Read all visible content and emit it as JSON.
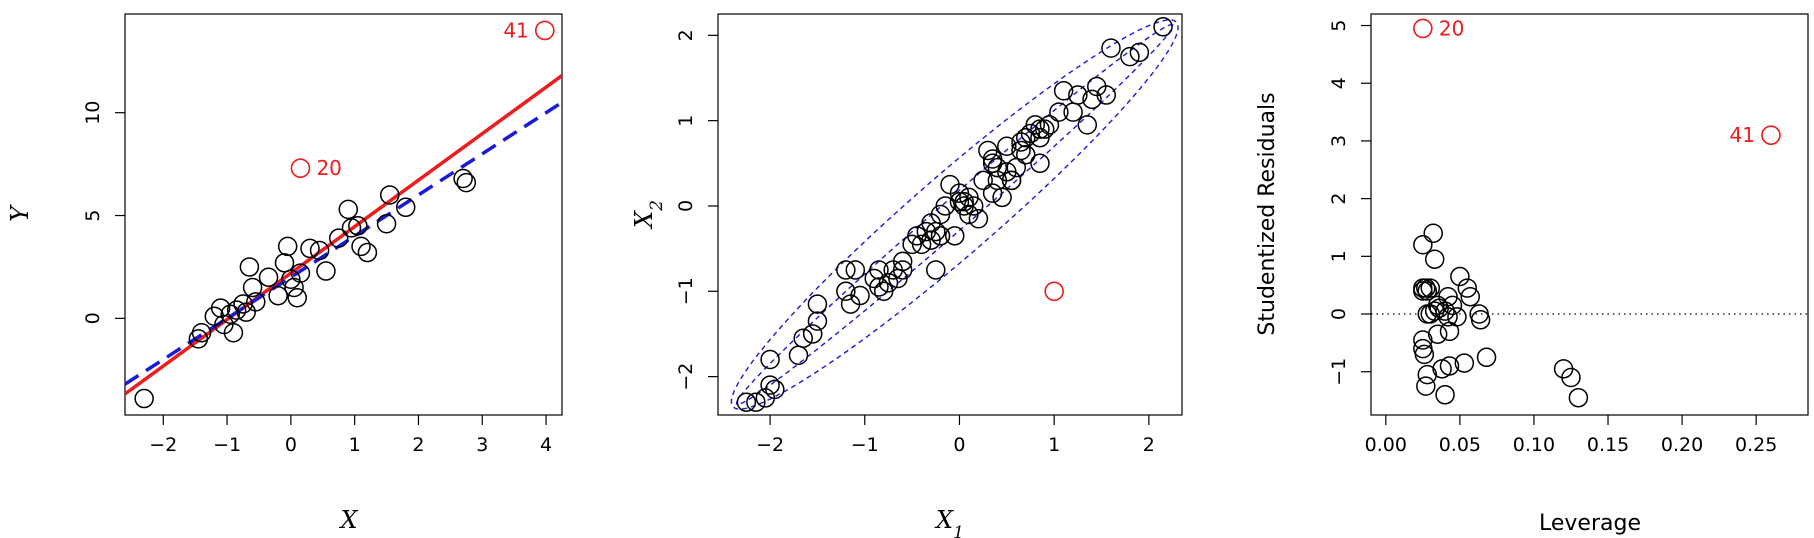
{
  "chart_data": [
    {
      "type": "scatter",
      "title": "",
      "xlabel": "X",
      "ylabel": "Y",
      "xlim": [
        -2.6,
        4.25
      ],
      "ylim": [
        -4.7,
        14.8
      ],
      "xticks": [
        "−2",
        "−1",
        "0",
        "1",
        "2",
        "3",
        "4"
      ],
      "xtick_values": [
        -2,
        -1,
        0,
        1,
        2,
        3,
        4
      ],
      "yticks": [
        "0",
        "5",
        "10"
      ],
      "ytick_values": [
        0,
        5,
        10
      ],
      "points": [
        [
          -2.3,
          -3.9
        ],
        [
          -1.45,
          -1.0
        ],
        [
          -1.4,
          -0.7
        ],
        [
          -1.2,
          0.1
        ],
        [
          -1.1,
          0.5
        ],
        [
          -1.05,
          -0.3
        ],
        [
          -0.95,
          0.2
        ],
        [
          -0.9,
          -0.7
        ],
        [
          -0.85,
          0.4
        ],
        [
          -0.75,
          0.7
        ],
        [
          -0.7,
          0.3
        ],
        [
          -0.65,
          2.5
        ],
        [
          -0.6,
          1.5
        ],
        [
          -0.55,
          0.8
        ],
        [
          -0.35,
          2.0
        ],
        [
          -0.2,
          1.1
        ],
        [
          -0.1,
          2.7
        ],
        [
          -0.05,
          3.5
        ],
        [
          0.0,
          1.9
        ],
        [
          0.05,
          1.5
        ],
        [
          0.1,
          1.0
        ],
        [
          0.15,
          2.2
        ],
        [
          0.3,
          3.4
        ],
        [
          0.45,
          3.3
        ],
        [
          0.55,
          2.3
        ],
        [
          0.75,
          3.9
        ],
        [
          0.9,
          5.3
        ],
        [
          0.95,
          4.4
        ],
        [
          1.05,
          4.5
        ],
        [
          1.1,
          3.5
        ],
        [
          1.2,
          3.2
        ],
        [
          1.5,
          4.6
        ],
        [
          1.55,
          6.0
        ],
        [
          1.8,
          5.4
        ],
        [
          2.7,
          6.8
        ],
        [
          2.75,
          6.6
        ]
      ],
      "highlighted": [
        {
          "label": "20",
          "x": 0.15,
          "y": 7.3
        },
        {
          "label": "41",
          "x": 3.98,
          "y": 14.0
        }
      ],
      "lines": [
        {
          "style": "solid",
          "color": "#ee1c1c",
          "intercept": 2.2,
          "slope": 2.26
        },
        {
          "style": "dashed",
          "color": "#1a1ad9",
          "intercept": 2.0,
          "slope": 2.0
        }
      ]
    },
    {
      "type": "scatter",
      "title": "",
      "xlabel": "X1",
      "ylabel": "X2",
      "xlim": [
        -2.55,
        2.35
      ],
      "ylim": [
        -2.45,
        2.25
      ],
      "xticks": [
        "−2",
        "−1",
        "0",
        "1",
        "2"
      ],
      "xtick_values": [
        -2,
        -1,
        0,
        1,
        2
      ],
      "yticks": [
        "−2",
        "−1",
        "0",
        "1",
        "2"
      ],
      "ytick_values": [
        -2,
        -1,
        0,
        1,
        2
      ],
      "points": [
        [
          -2.25,
          -2.3
        ],
        [
          -2.15,
          -2.3
        ],
        [
          -2.05,
          -2.25
        ],
        [
          -2.0,
          -2.1
        ],
        [
          -1.95,
          -2.15
        ],
        [
          -2.0,
          -1.8
        ],
        [
          -1.7,
          -1.75
        ],
        [
          -1.65,
          -1.55
        ],
        [
          -1.55,
          -1.5
        ],
        [
          -1.5,
          -1.35
        ],
        [
          -1.5,
          -1.15
        ],
        [
          -1.2,
          -1.0
        ],
        [
          -1.2,
          -0.75
        ],
        [
          -1.15,
          -1.15
        ],
        [
          -1.1,
          -0.75
        ],
        [
          -1.05,
          -1.05
        ],
        [
          -0.9,
          -0.85
        ],
        [
          -0.85,
          -0.95
        ],
        [
          -0.85,
          -0.75
        ],
        [
          -0.8,
          -1.0
        ],
        [
          -0.75,
          -0.9
        ],
        [
          -0.7,
          -0.75
        ],
        [
          -0.65,
          -0.85
        ],
        [
          -0.6,
          -0.75
        ],
        [
          -0.6,
          -0.65
        ],
        [
          -0.5,
          -0.45
        ],
        [
          -0.45,
          -0.35
        ],
        [
          -0.4,
          -0.45
        ],
        [
          -0.35,
          -0.3
        ],
        [
          -0.3,
          -0.4
        ],
        [
          -0.3,
          -0.2
        ],
        [
          -0.25,
          -0.3
        ],
        [
          -0.25,
          -0.75
        ],
        [
          -0.2,
          -0.1
        ],
        [
          -0.2,
          -0.35
        ],
        [
          -0.15,
          0.0
        ],
        [
          -0.1,
          0.25
        ],
        [
          -0.05,
          -0.35
        ],
        [
          0.0,
          0.05
        ],
        [
          0.0,
          0.15
        ],
        [
          0.05,
          0.05
        ],
        [
          0.05,
          0.0
        ],
        [
          0.1,
          -0.1
        ],
        [
          0.1,
          0.1
        ],
        [
          0.15,
          0.0
        ],
        [
          0.2,
          -0.15
        ],
        [
          0.25,
          0.3
        ],
        [
          0.3,
          0.65
        ],
        [
          0.35,
          0.5
        ],
        [
          0.35,
          0.55
        ],
        [
          0.4,
          0.45
        ],
        [
          0.4,
          0.3
        ],
        [
          0.45,
          0.1
        ],
        [
          0.5,
          0.7
        ],
        [
          0.5,
          0.4
        ],
        [
          0.55,
          0.3
        ],
        [
          0.6,
          0.45
        ],
        [
          0.65,
          0.75
        ],
        [
          0.7,
          0.6
        ],
        [
          0.75,
          0.85
        ],
        [
          0.8,
          0.95
        ],
        [
          0.85,
          0.8
        ],
        [
          0.85,
          0.9
        ],
        [
          0.85,
          0.5
        ],
        [
          0.9,
          0.9
        ],
        [
          0.95,
          0.95
        ],
        [
          1.05,
          1.1
        ],
        [
          1.1,
          1.35
        ],
        [
          1.2,
          1.1
        ],
        [
          1.25,
          1.3
        ],
        [
          1.35,
          0.95
        ],
        [
          1.4,
          1.25
        ],
        [
          1.45,
          1.4
        ],
        [
          1.55,
          1.3
        ],
        [
          1.6,
          1.85
        ],
        [
          1.8,
          1.75
        ],
        [
          1.9,
          1.8
        ],
        [
          2.15,
          2.1
        ],
        [
          0.55,
          0.3
        ],
        [
          0.65,
          0.65
        ],
        [
          0.35,
          0.15
        ],
        [
          0.7,
          0.8
        ]
      ],
      "highlighted": [
        {
          "label": "",
          "x": 1.0,
          "y": -1.0
        }
      ],
      "ellipses": [
        {
          "center": [
            -0.05,
            -0.1
          ],
          "semi_major": 3.2,
          "semi_minor": 0.17,
          "angle_deg": 44
        },
        {
          "center": [
            -0.05,
            -0.1
          ],
          "semi_major": 3.25,
          "semi_minor": 0.45,
          "angle_deg": 44
        }
      ]
    },
    {
      "type": "scatter",
      "title": "",
      "xlabel": "Leverage",
      "ylabel": "Studentized Residuals",
      "xlim": [
        -0.01,
        0.285
      ],
      "ylim": [
        -1.75,
        5.2
      ],
      "xticks": [
        "0.00",
        "0.05",
        "0.10",
        "0.15",
        "0.20",
        "0.25"
      ],
      "xtick_values": [
        0.0,
        0.05,
        0.1,
        0.15,
        0.2,
        0.25
      ],
      "yticks": [
        "−1",
        "0",
        "1",
        "2",
        "3",
        "4",
        "5"
      ],
      "ytick_values": [
        -1,
        0,
        1,
        2,
        3,
        4,
        5
      ],
      "reference_line": {
        "y": 0,
        "style": "dotted"
      },
      "points": [
        [
          0.025,
          1.2
        ],
        [
          0.025,
          0.45
        ],
        [
          0.025,
          0.4
        ],
        [
          0.027,
          0.45
        ],
        [
          0.028,
          0.4
        ],
        [
          0.025,
          -0.45
        ],
        [
          0.025,
          -0.6
        ],
        [
          0.026,
          -0.7
        ],
        [
          0.027,
          -1.25
        ],
        [
          0.028,
          0.0
        ],
        [
          0.028,
          -1.05
        ],
        [
          0.03,
          0.0
        ],
        [
          0.03,
          0.45
        ],
        [
          0.032,
          1.4
        ],
        [
          0.033,
          0.95
        ],
        [
          0.033,
          0.05
        ],
        [
          0.035,
          0.15
        ],
        [
          0.035,
          -0.35
        ],
        [
          0.036,
          0.1
        ],
        [
          0.038,
          -0.95
        ],
        [
          0.04,
          -1.4
        ],
        [
          0.04,
          0.05
        ],
        [
          0.042,
          0.3
        ],
        [
          0.042,
          -0.05
        ],
        [
          0.043,
          -0.3
        ],
        [
          0.043,
          -0.9
        ],
        [
          0.05,
          0.65
        ],
        [
          0.053,
          -0.85
        ],
        [
          0.055,
          0.45
        ],
        [
          0.057,
          0.3
        ],
        [
          0.063,
          0.0
        ],
        [
          0.064,
          -0.1
        ],
        [
          0.068,
          -0.75
        ],
        [
          0.12,
          -0.95
        ],
        [
          0.125,
          -1.1
        ],
        [
          0.13,
          -1.45
        ],
        [
          0.045,
          0.15
        ],
        [
          0.048,
          -0.05
        ]
      ],
      "highlighted": [
        {
          "label": "20",
          "x": 0.025,
          "y": 4.95
        },
        {
          "label": "41",
          "x": 0.26,
          "y": 3.1
        }
      ]
    }
  ],
  "colors": {
    "highlight": "#ee1c1c",
    "points": "#000000",
    "dashed_line": "#1a1ad9",
    "solid_line": "#ee1c1c"
  }
}
